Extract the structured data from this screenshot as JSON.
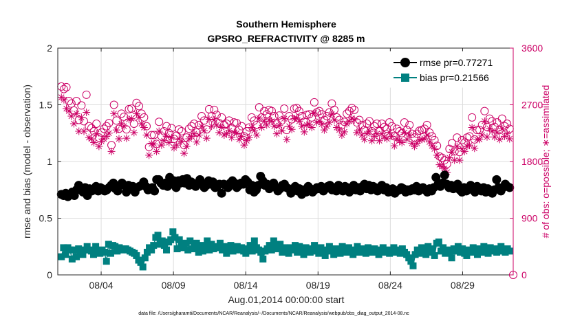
{
  "chart_data": {
    "type": "scatter",
    "title": "Southern Hemisphere",
    "subtitle": "GPSRO_REFRACTIVITY @ 8285 m",
    "xlabel": "Aug.01,2014 00:00:00 start",
    "ylabel": "rmse and bias (model - observation)",
    "ylabel_right": "# of obs: o=possible; ∗=assimilated",
    "footnote": "data file: /Users/gharamti/Documents/NCAR/Reanalysis/~/Documents/NCAR/Reanalysis/webpub/obs_diag_output_2014-08.nc",
    "xlim": [
      1,
      32.5
    ],
    "ylim": [
      0,
      2
    ],
    "ylim_right": [
      0,
      3600
    ],
    "x_ticks": [
      {
        "value": 4,
        "label": "08/04"
      },
      {
        "value": 9,
        "label": "08/09"
      },
      {
        "value": 14,
        "label": "08/14"
      },
      {
        "value": 19,
        "label": "08/19"
      },
      {
        "value": 24,
        "label": "08/24"
      },
      {
        "value": 29,
        "label": "08/29"
      }
    ],
    "y_ticks": [
      {
        "value": 0,
        "label": "0"
      },
      {
        "value": 0.5,
        "label": "0.5"
      },
      {
        "value": 1,
        "label": "1"
      },
      {
        "value": 1.5,
        "label": "1.5"
      },
      {
        "value": 2,
        "label": "2"
      }
    ],
    "y_ticks_right": [
      {
        "value": 0,
        "label": "0"
      },
      {
        "value": 900,
        "label": "900"
      },
      {
        "value": 1800,
        "label": "1800"
      },
      {
        "value": 2700,
        "label": "2700"
      },
      {
        "value": 3600,
        "label": "3600"
      }
    ],
    "grid": true,
    "legend_position": "top-right",
    "series": [
      {
        "name": "rmse pr=0.77271",
        "color": "#000000",
        "marker": "filled-circle",
        "axis": "left",
        "values": [
          0.71,
          0.7,
          0.72,
          0.69,
          0.71,
          0.73,
          0.7,
          0.75,
          0.79,
          0.76,
          0.73,
          0.77,
          0.7,
          0.76,
          0.74,
          0.75,
          0.78,
          0.74,
          0.77,
          0.76,
          0.74,
          0.75,
          0.77,
          0.79,
          0.81,
          0.76,
          0.74,
          0.79,
          0.81,
          0.79,
          0.73,
          0.79,
          0.76,
          0.78,
          0.73,
          0.77,
          0.78,
          0.79,
          0.82,
          0.78,
          0.75,
          0.76,
          0.77,
          0.74,
          0.84,
          0.84,
          0.81,
          0.79,
          0.81,
          0.78,
          0.86,
          0.8,
          0.83,
          0.77,
          0.83,
          0.81,
          0.84,
          0.81,
          0.85,
          0.79,
          0.82,
          0.8,
          0.78,
          0.81,
          0.84,
          0.8,
          0.77,
          0.79,
          0.83,
          0.8,
          0.82,
          0.77,
          0.78,
          0.8,
          0.72,
          0.8,
          0.79,
          0.77,
          0.81,
          0.83,
          0.81,
          0.77,
          0.79,
          0.81,
          0.8,
          0.84,
          0.82,
          0.75,
          0.79,
          0.73,
          0.75,
          0.79,
          0.87,
          0.83,
          0.79,
          0.8,
          0.76,
          0.78,
          0.81,
          0.77,
          0.74,
          0.76,
          0.79,
          0.8,
          0.77,
          0.76,
          0.72,
          0.74,
          0.78,
          0.74,
          0.76,
          0.71,
          0.75,
          0.73,
          0.78,
          0.76,
          0.73,
          0.75,
          0.77,
          0.76,
          0.78,
          0.74,
          0.76,
          0.78,
          0.79,
          0.75,
          0.77,
          0.74,
          0.79,
          0.76,
          0.74,
          0.78,
          0.77,
          0.73,
          0.76,
          0.79,
          0.75,
          0.77,
          0.74,
          0.78,
          0.8,
          0.76,
          0.79,
          0.75,
          0.78,
          0.77,
          0.74,
          0.76,
          0.79,
          0.75,
          0.77,
          0.73,
          0.74,
          0.76,
          0.72,
          0.74,
          0.75,
          0.77,
          0.76,
          0.73,
          0.75,
          0.74,
          0.76,
          0.75,
          0.78,
          0.74,
          0.76,
          0.77,
          0.75,
          0.73,
          0.76,
          0.74,
          0.77,
          0.86,
          0.8,
          0.78,
          0.81,
          0.88,
          0.8,
          0.77,
          0.79,
          0.76,
          0.78,
          0.8,
          0.75,
          0.73,
          0.77,
          0.74,
          0.76,
          0.79,
          0.75,
          0.73,
          0.78,
          0.76,
          0.74,
          0.77,
          0.73,
          0.76,
          0.74,
          0.72,
          0.75,
          0.84,
          0.77,
          0.74,
          0.77,
          0.8,
          0.78,
          0.77
        ]
      },
      {
        "name": "bias pr=0.21566",
        "color": "#008080",
        "marker": "filled-square",
        "axis": "left",
        "values": [
          0.16,
          0.24,
          0.18,
          0.24,
          0.22,
          0.14,
          0.22,
          0.16,
          0.23,
          0.21,
          0.18,
          0.22,
          0.25,
          0.22,
          0.21,
          0.18,
          0.25,
          0.21,
          0.19,
          0.22,
          0.2,
          0.12,
          0.27,
          0.19,
          0.26,
          0.25,
          0.21,
          0.24,
          0.22,
          0.23,
          0.23,
          0.22,
          0.21,
          0.2,
          0.19,
          0.17,
          0.13,
          0.11,
          0.07,
          0.15,
          0.2,
          0.24,
          0.22,
          0.26,
          0.33,
          0.35,
          0.27,
          0.3,
          0.26,
          0.22,
          0.29,
          0.31,
          0.38,
          0.33,
          0.23,
          0.31,
          0.27,
          0.24,
          0.28,
          0.22,
          0.3,
          0.23,
          0.25,
          0.28,
          0.2,
          0.26,
          0.21,
          0.24,
          0.3,
          0.22,
          0.27,
          0.23,
          0.25,
          0.24,
          0.28,
          0.22,
          0.25,
          0.19,
          0.24,
          0.26,
          0.21,
          0.23,
          0.25,
          0.22,
          0.24,
          0.21,
          0.19,
          0.23,
          0.26,
          0.21,
          0.3,
          0.24,
          0.22,
          0.2,
          0.14,
          0.21,
          0.23,
          0.26,
          0.22,
          0.3,
          0.25,
          0.23,
          0.27,
          0.2,
          0.24,
          0.22,
          0.19,
          0.24,
          0.22,
          0.26,
          0.2,
          0.25,
          0.22,
          0.18,
          0.24,
          0.21,
          0.2,
          0.23,
          0.26,
          0.21,
          0.19,
          0.24,
          0.22,
          0.17,
          0.21,
          0.25,
          0.22,
          0.18,
          0.23,
          0.21,
          0.19,
          0.25,
          0.22,
          0.2,
          0.24,
          0.21,
          0.18,
          0.22,
          0.25,
          0.2,
          0.23,
          0.21,
          0.19,
          0.24,
          0.22,
          0.2,
          0.23,
          0.21,
          0.18,
          0.22,
          0.24,
          0.2,
          0.22,
          0.19,
          0.21,
          0.24,
          0.2,
          0.22,
          0.19,
          0.23,
          0.2,
          0.18,
          0.15,
          0.12,
          0.08,
          0.18,
          0.22,
          0.19,
          0.24,
          0.21,
          0.18,
          0.25,
          0.2,
          0.23,
          0.17,
          0.28,
          0.29,
          0.21,
          0.24,
          0.19,
          0.22,
          0.2,
          0.15,
          0.23,
          0.21,
          0.25,
          0.2,
          0.23,
          0.19,
          0.17,
          0.22,
          0.2,
          0.24,
          0.21,
          0.18,
          0.23,
          0.2,
          0.25,
          0.22,
          0.19,
          0.24,
          0.21,
          0.23,
          0.2,
          0.22,
          0.25,
          0.21,
          0.2,
          0.23,
          0.21
        ]
      },
      {
        "name": "possible obs",
        "color": "#cc0066",
        "marker": "open-circle",
        "axis": "right",
        "values": [
          2990,
          2950,
          2980,
          2760,
          2720,
          2610,
          2760,
          2460,
          2690,
          2440,
          2860,
          2360,
          2330,
          2280,
          2400,
          2180,
          2260,
          2320,
          2360,
          2410,
          2060,
          2700,
          2450,
          2320,
          2560,
          2510,
          2310,
          2630,
          2640,
          2400,
          2730,
          2680,
          2560,
          2500,
          2360,
          2030,
          2220,
          2220,
          2080,
          2430,
          2200,
          2280,
          2360,
          2250,
          2330,
          2160,
          2210,
          2310,
          2280,
          2060,
          2180,
          2320,
          2360,
          2400,
          2260,
          2380,
          2520,
          2450,
          2310,
          2630,
          2520,
          2620,
          2540,
          2410,
          2500,
          2380,
          2400,
          2450,
          2330,
          2420,
          2410,
          2300,
          2360,
          2200,
          2280,
          2340,
          2500,
          2450,
          2380,
          2660,
          2500,
          2600,
          2550,
          2620,
          2600,
          2520,
          2400,
          2530,
          2450,
          2640,
          2300,
          2520,
          2470,
          2640,
          2650,
          2600,
          2520,
          2430,
          2540,
          2550,
          2500,
          2740,
          2580,
          2600,
          2550,
          2460,
          2520,
          2580,
          2720,
          2620,
          2500,
          2460,
          2380,
          2430,
          2560,
          2600,
          2650,
          2620,
          2420,
          2460,
          2380,
          2300,
          2400,
          2440,
          2280,
          2360,
          2400,
          2280,
          2400,
          2350,
          2320,
          2420,
          2360,
          2200,
          2320,
          2280,
          2250,
          2420,
          2300,
          2380,
          2240,
          2180,
          2240,
          2290,
          2300,
          2320,
          2380,
          2260,
          2200,
          2140,
          2050,
          1880,
          1860,
          1820,
          1760,
          2000,
          2090,
          1960,
          2180,
          1950,
          2140,
          2100,
          2180,
          2200,
          2500,
          2150,
          2300,
          2300,
          2380,
          2600,
          2350,
          2480,
          2440,
          2350,
          2420,
          2300,
          2480,
          2360,
          2400,
          2320
        ]
      },
      {
        "name": "assimilated obs",
        "color": "#cc0066",
        "marker": "asterisk",
        "axis": "right",
        "values": [
          2820,
          2780,
          2640,
          2600,
          2520,
          2400,
          2560,
          2280,
          2500,
          2280,
          2580,
          2180,
          2160,
          2100,
          2240,
          2040,
          2120,
          2160,
          2200,
          2250,
          1960,
          2560,
          2300,
          2160,
          2400,
          2360,
          2170,
          2470,
          2480,
          2260,
          2560,
          2500,
          2400,
          2340,
          2220,
          1900,
          2080,
          2080,
          1960,
          2280,
          2060,
          2130,
          2200,
          2100,
          2180,
          2020,
          2060,
          2160,
          2120,
          1930,
          2040,
          2160,
          2200,
          2240,
          2110,
          2220,
          2360,
          2290,
          2170,
          2470,
          2360,
          2460,
          2380,
          2260,
          2340,
          2220,
          2240,
          2290,
          2180,
          2260,
          2250,
          2150,
          2200,
          2060,
          2130,
          2180,
          2340,
          2290,
          2220,
          2490,
          2340,
          2440,
          2380,
          2460,
          2440,
          2360,
          2240,
          2370,
          2290,
          2480,
          2150,
          2360,
          2310,
          2480,
          2490,
          2440,
          2360,
          2270,
          2380,
          2390,
          2340,
          2570,
          2420,
          2440,
          2390,
          2300,
          2360,
          2420,
          2550,
          2460,
          2340,
          2300,
          2220,
          2270,
          2400,
          2440,
          2490,
          2460,
          2260,
          2300,
          2220,
          2150,
          2240,
          2280,
          2130,
          2200,
          2240,
          2130,
          2240,
          2190,
          2160,
          2260,
          2200,
          2050,
          2160,
          2130,
          2100,
          2260,
          2150,
          2220,
          2090,
          2040,
          2090,
          2140,
          2150,
          2160,
          2220,
          2110,
          2050,
          2000,
          1900,
          1750,
          1720,
          1690,
          1630,
          1860,
          1950,
          1820,
          2040,
          1820,
          2000,
          1960,
          2040,
          2060,
          2340,
          2010,
          2150,
          2150,
          2220,
          2440,
          2190,
          2320,
          2280,
          2190,
          2260,
          2150,
          2320,
          2200,
          2240,
          2160
        ]
      }
    ]
  }
}
